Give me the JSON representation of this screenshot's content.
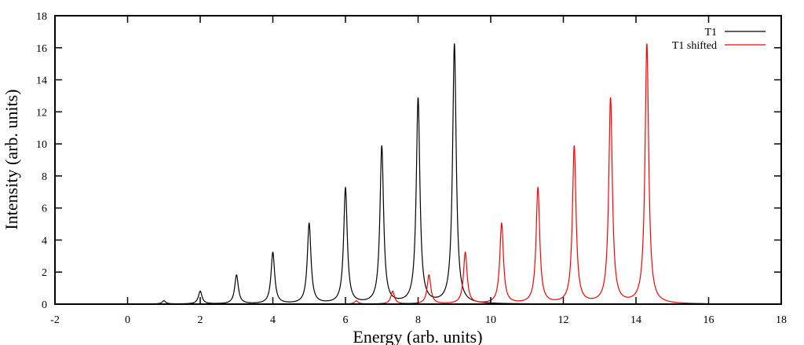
{
  "chart_data": {
    "type": "line",
    "title": "",
    "xlabel": "Energy (arb. units)",
    "ylabel": "Intensity (arb. units)",
    "xlim": [
      -2,
      18
    ],
    "ylim": [
      0,
      18
    ],
    "xticks": [
      -2,
      0,
      2,
      4,
      6,
      8,
      10,
      12,
      14,
      16,
      18
    ],
    "yticks": [
      0,
      2,
      4,
      6,
      8,
      10,
      12,
      14,
      16,
      18
    ],
    "grid": false,
    "legend_position": "top-right",
    "lineshape": "lorentzian",
    "hwhm": 0.06,
    "series": [
      {
        "name": "T1",
        "color": "#000000",
        "peaks_x": [
          1,
          2,
          3,
          4,
          5,
          6,
          7,
          8,
          9
        ],
        "peaks_y": [
          0.2,
          0.8,
          1.8,
          3.2,
          5.0,
          7.2,
          9.8,
          12.8,
          16.2
        ]
      },
      {
        "name": "T1 shifted",
        "color": "#ff0000",
        "peaks_x": [
          6.3,
          7.3,
          8.3,
          9.3,
          10.3,
          11.3,
          12.3,
          13.3,
          14.3
        ],
        "peaks_y": [
          0.2,
          0.8,
          1.8,
          3.2,
          5.0,
          7.2,
          9.8,
          12.8,
          16.2
        ]
      }
    ]
  }
}
